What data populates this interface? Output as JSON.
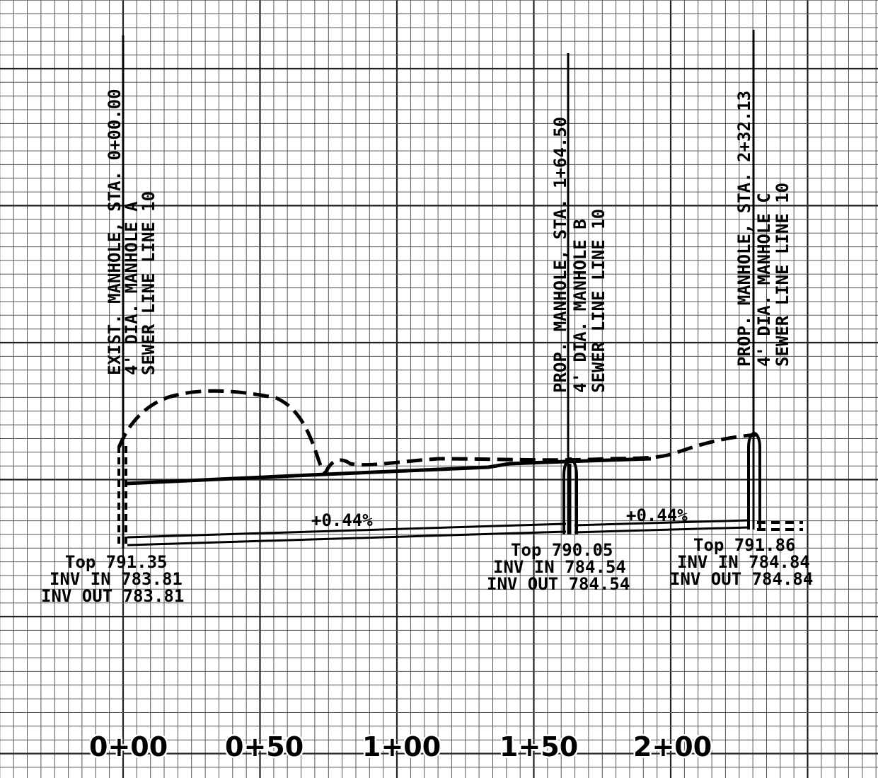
{
  "colors": {
    "ink": "#000000",
    "grid_minor": "#555555",
    "grid_major": "#222222",
    "paper": "#ffffff"
  },
  "manholes": [
    {
      "id": "A",
      "label_line1": "EXIST. MANHOLE, STA. 0+00.00",
      "label_line2": "4' DIA. MANHOLE A",
      "label_line3": "SEWER LINE LINE 10",
      "top": "Top 791.35",
      "inv_in": "INV IN 783.81",
      "inv_out": "INV OUT 783.81"
    },
    {
      "id": "B",
      "label_line1": "PROP. MANHOLE, STA. 1+64.50",
      "label_line2": "4' DIA. MANHOLE B",
      "label_line3": "SEWER LINE LINE 10",
      "top": "Top 790.05",
      "inv_in": "INV IN 784.54",
      "inv_out": "INV OUT 784.54"
    },
    {
      "id": "C",
      "label_line1": "PROP. MANHOLE, STA. 2+32.13",
      "label_line2": "4' DIA. MANHOLE C",
      "label_line3": "SEWER LINE LINE 10",
      "top": "Top 791.86",
      "inv_in": "INV IN 784.84",
      "inv_out": "INV OUT 784.84"
    }
  ],
  "slopes": [
    {
      "segment": "A-B",
      "label": "+0.44%"
    },
    {
      "segment": "B-C",
      "label": "+0.44%"
    }
  ],
  "stations": [
    "0+00",
    "0+50",
    "1+00",
    "1+50",
    "2+00"
  ]
}
